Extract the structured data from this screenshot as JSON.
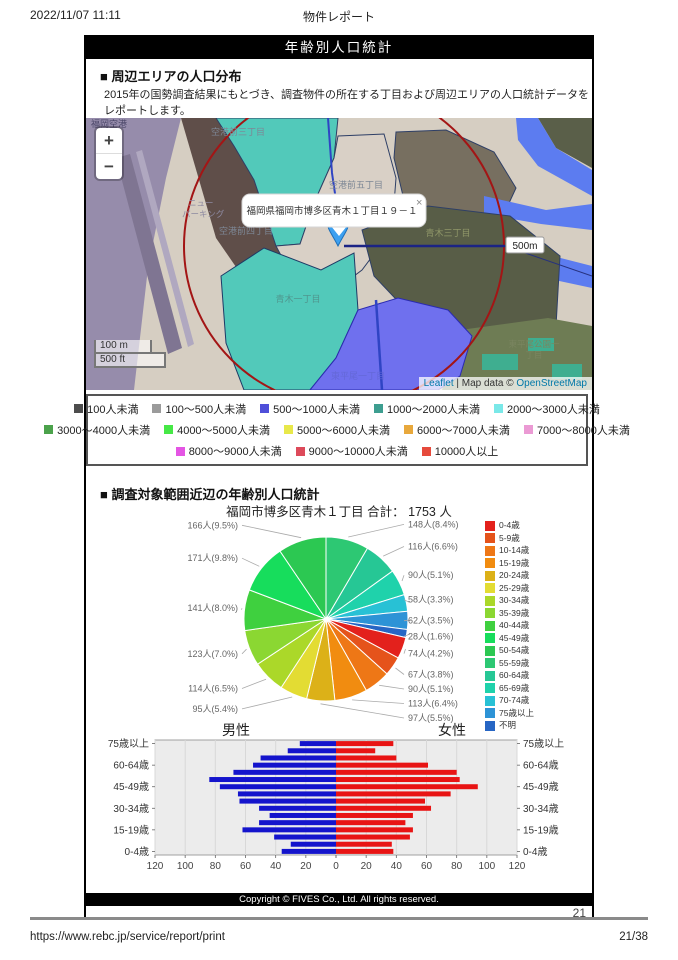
{
  "print_header": {
    "datetime": "2022/11/07 11:11",
    "doc_title": "物件レポート"
  },
  "banner": {
    "title": "年齢別人口統計"
  },
  "section1": {
    "heading": "■ 周辺エリアの人口分布",
    "description": "2015年の国勢調査結果にもとづき、調査物件の所在する丁目および周辺エリアの人口統計データをレポートします。"
  },
  "map": {
    "zoom_in": "+",
    "zoom_out": "−",
    "popup_text": "福岡県福岡市博多区青木１丁目１９－１",
    "popup_close": "×",
    "radius_label": "500m",
    "scale_m": "100 m",
    "scale_ft": "500 ft",
    "attribution_leaflet": "Leaflet",
    "attribution_mid": " | Map data © ",
    "attribution_osm": "OpenStreetMap",
    "labels": [
      {
        "text": "福岡空港"
      },
      {
        "text": "空港前三丁目"
      },
      {
        "text": "空港前五丁目"
      },
      {
        "text": "空港前四丁目"
      },
      {
        "text": "青木三丁目"
      },
      {
        "text": "青木一丁目"
      },
      {
        "text": "東平尾一丁目"
      },
      {
        "text": "東平尾公園一"
      },
      {
        "text": "丁目"
      },
      {
        "text": "ニュー"
      },
      {
        "text": "パーキング"
      }
    ]
  },
  "map_legend": {
    "rows": [
      [
        {
          "label": "100人未満",
          "color": "#4d4d4d"
        },
        {
          "label": "100〜500人未満",
          "color": "#9b9b9b"
        },
        {
          "label": "500〜1000人未満",
          "color": "#4f4fd9"
        },
        {
          "label": "1000〜2000人未満",
          "color": "#3d9e90"
        },
        {
          "label": "2000〜3000人未満",
          "color": "#7ae8e8"
        }
      ],
      [
        {
          "label": "3000〜4000人未満",
          "color": "#4ba24b"
        },
        {
          "label": "4000〜5000人未満",
          "color": "#46e846"
        },
        {
          "label": "5000〜6000人未満",
          "color": "#e8e84a"
        },
        {
          "label": "6000〜7000人未満",
          "color": "#e8a83c"
        },
        {
          "label": "7000〜8000人未満",
          "color": "#eb9ad4"
        }
      ],
      [
        {
          "label": "8000〜9000人未満",
          "color": "#e455e4"
        },
        {
          "label": "9000〜10000人未満",
          "color": "#dd4a5a"
        },
        {
          "label": "10000人以上",
          "color": "#e64a3c"
        }
      ]
    ]
  },
  "section2": {
    "heading": "■ 調査対象範囲近辺の年齢別人口統計"
  },
  "chart_data": [
    {
      "type": "pie",
      "title": "福岡市博多区青木１丁目 合計： 1753 人",
      "total": 1753,
      "legend_position": "right",
      "start_angle": "top",
      "clockwise": true,
      "slice_order": [
        11,
        12,
        13,
        14,
        15,
        16,
        0,
        1,
        2,
        3,
        4,
        5,
        6,
        7,
        8,
        9,
        10
      ],
      "series": [
        {
          "name": "0-4歳",
          "value": 74,
          "pct": "4.2%",
          "color": "#e3211c"
        },
        {
          "name": "5-9歳",
          "value": 67,
          "pct": "3.8%",
          "color": "#e5531b"
        },
        {
          "name": "10-14歳",
          "value": 90,
          "pct": "5.1%",
          "color": "#ee7716"
        },
        {
          "name": "15-19歳",
          "value": 113,
          "pct": "6.4%",
          "color": "#f18c10"
        },
        {
          "name": "20-24歳",
          "value": 97,
          "pct": "5.5%",
          "color": "#dcb118"
        },
        {
          "name": "25-29歳",
          "value": 95,
          "pct": "5.4%",
          "color": "#e3dc33"
        },
        {
          "name": "30-34歳",
          "value": 114,
          "pct": "6.5%",
          "color": "#abd829"
        },
        {
          "name": "35-39歳",
          "value": 123,
          "pct": "7.0%",
          "color": "#8bd732"
        },
        {
          "name": "40-44歳",
          "value": 141,
          "pct": "8.0%",
          "color": "#3fd03f"
        },
        {
          "name": "45-49歳",
          "value": 171,
          "pct": "9.8%",
          "color": "#17dd5c"
        },
        {
          "name": "50-54歳",
          "value": 166,
          "pct": "9.5%",
          "color": "#2cc852"
        },
        {
          "name": "55-59歳",
          "value": 148,
          "pct": "8.4%",
          "color": "#2dc873"
        },
        {
          "name": "60-64歳",
          "value": 116,
          "pct": "6.6%",
          "color": "#26c795"
        },
        {
          "name": "65-69歳",
          "value": 90,
          "pct": "5.1%",
          "color": "#1fd2ab"
        },
        {
          "name": "70-74歳",
          "value": 58,
          "pct": "3.3%",
          "color": "#28c1d5"
        },
        {
          "name": "75歳以上",
          "value": 62,
          "pct": "3.5%",
          "color": "#2d93d6"
        },
        {
          "name": "不明",
          "value": 28,
          "pct": "1.6%",
          "color": "#2766c4"
        }
      ]
    },
    {
      "type": "bar",
      "subtype": "population-pyramid",
      "left_title": "男性",
      "right_title": "女性",
      "categories": [
        "75歳以上",
        "70-74歳",
        "65-69歳",
        "60-64歳",
        "55-59歳",
        "50-54歳",
        "45-49歳",
        "40-44歳",
        "35-39歳",
        "30-34歳",
        "25-29歳",
        "20-24歳",
        "15-19歳",
        "10-14歳",
        "5-9歳",
        "0-4歳"
      ],
      "series": [
        {
          "name": "男性",
          "color": "#1414cc",
          "values": [
            24,
            32,
            50,
            55,
            68,
            84,
            77,
            65,
            64,
            51,
            44,
            51,
            62,
            41,
            30,
            36
          ]
        },
        {
          "name": "女性",
          "color": "#e81414",
          "values": [
            38,
            26,
            40,
            61,
            80,
            82,
            94,
            76,
            59,
            63,
            51,
            46,
            51,
            49,
            37,
            38
          ]
        }
      ],
      "xlim": [
        0,
        120
      ],
      "xticks": [
        120,
        100,
        80,
        60,
        40,
        20,
        0,
        20,
        40,
        60,
        80,
        100,
        120
      ],
      "label_every": 3,
      "grid": true
    }
  ],
  "footer": {
    "copyright": "Copyright © FIVES Co., Ltd. All rights reserved.",
    "page_number": "21"
  },
  "print_footer": {
    "url": "https://www.rebc.jp/service/report/print",
    "page": "21/38"
  }
}
